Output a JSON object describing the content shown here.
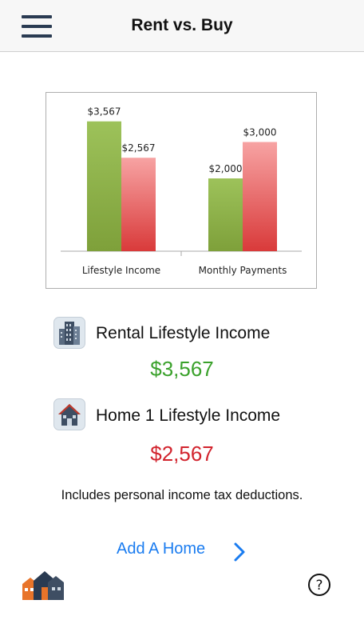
{
  "header": {
    "title": "Rent vs. Buy",
    "menu_icon": "hamburger-menu-icon"
  },
  "chart_data": {
    "type": "bar",
    "categories": [
      "Lifestyle Income",
      "Monthly Payments"
    ],
    "series": [
      {
        "values": [
          3567,
          2000
        ],
        "labels": [
          "$3,567",
          "$2,000"
        ],
        "color": "#8fb347"
      },
      {
        "values": [
          2567,
          3000
        ],
        "labels": [
          "$2,567",
          "$3,000"
        ],
        "color": "#ee6d6d"
      }
    ],
    "ylim": [
      0,
      4000
    ]
  },
  "summary": {
    "rental": {
      "icon": "apartment-building-icon",
      "label": "Rental Lifestyle Income",
      "value": "$3,567",
      "color": "#3aa12b"
    },
    "home": {
      "icon": "house-icon",
      "label": "Home 1 Lifestyle Income",
      "value": "$2,567",
      "color": "#d2232d"
    },
    "note": "Includes personal income tax deductions."
  },
  "actions": {
    "add_home_label": "Add A Home",
    "add_home_icon": "chevron-right-icon"
  },
  "footer": {
    "logo_icon": "houses-logo-icon",
    "help_icon": "help-circle-icon",
    "help_glyph": "?"
  }
}
